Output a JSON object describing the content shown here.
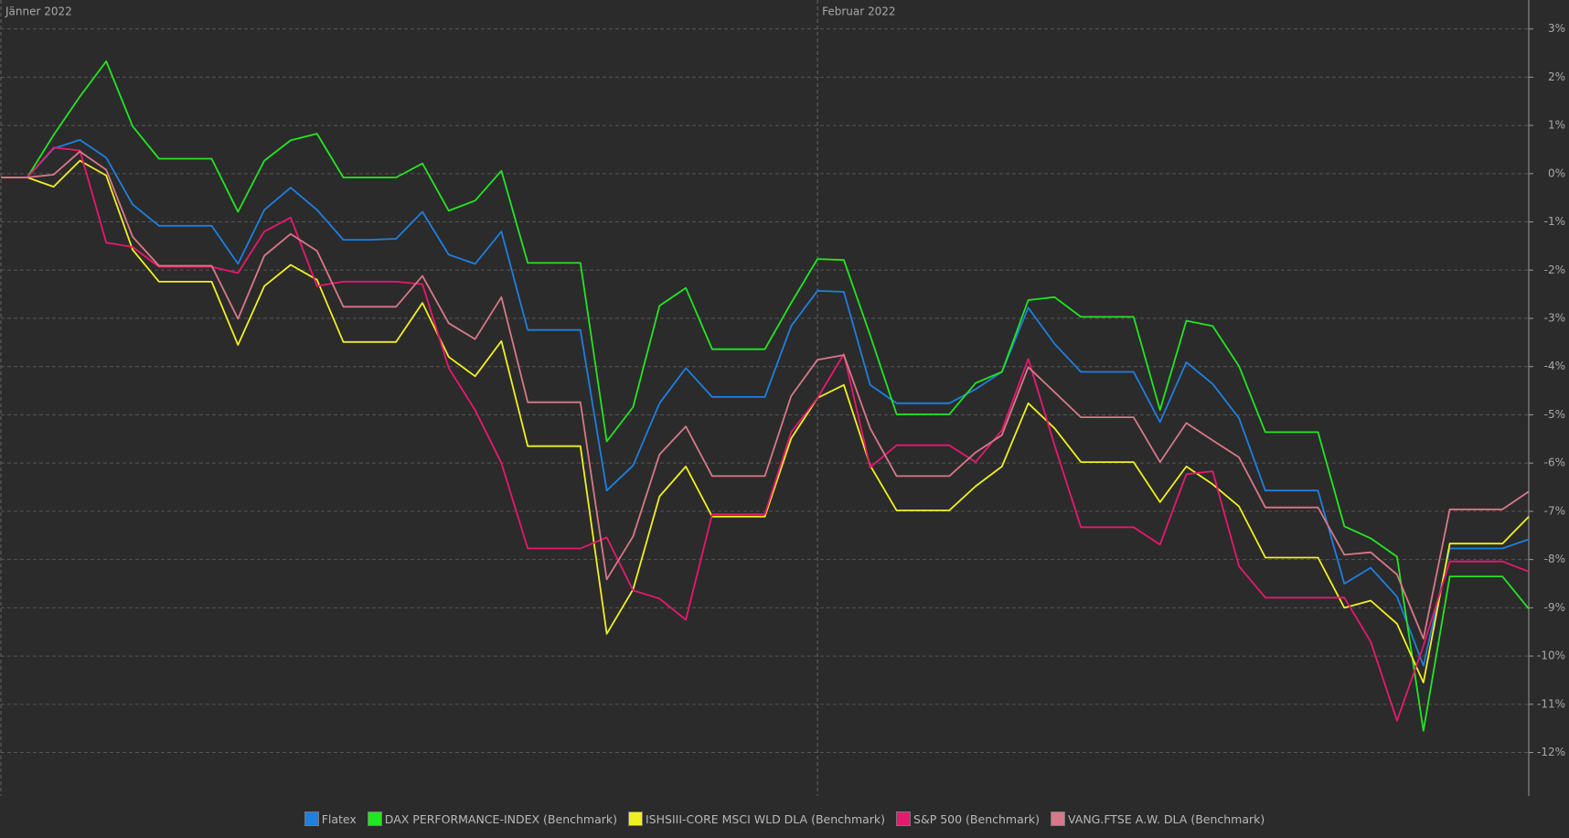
{
  "chart_data": {
    "type": "line",
    "categories": [
      "Jänner 2022",
      null,
      null,
      null,
      null,
      null,
      null,
      null,
      null,
      null,
      null,
      null,
      null,
      null,
      null,
      null,
      null,
      null,
      null,
      null,
      null,
      null,
      null,
      null,
      null,
      null,
      null,
      null,
      null,
      null,
      null,
      "Februar 2022",
      null,
      null,
      null,
      null,
      null,
      null,
      null,
      null,
      null,
      null,
      null,
      null,
      null,
      null,
      null,
      null,
      null,
      null,
      null,
      null,
      null,
      null,
      null,
      null,
      null,
      null,
      null
    ],
    "series": [
      {
        "name": "Flatex",
        "color": "#1e7fe0",
        "values": [
          -0.08,
          -0.08,
          0.52,
          0.7,
          0.33,
          -0.64,
          -1.08,
          -1.08,
          -1.08,
          -1.87,
          -0.75,
          -0.29,
          -0.75,
          -1.37,
          -1.37,
          -1.35,
          -0.79,
          -1.68,
          -1.87,
          -1.2,
          -3.24,
          -3.24,
          -3.24,
          -6.57,
          -6.05,
          -4.76,
          -4.03,
          -4.63,
          -4.63,
          -4.63,
          -3.16,
          -2.43,
          -2.45,
          -4.38,
          -4.76,
          -4.76,
          -4.76,
          -4.47,
          -4.11,
          -2.78,
          -3.53,
          -4.11,
          -4.11,
          -4.11,
          -5.15,
          -3.91,
          -4.36,
          -5.07,
          -6.57,
          -6.57,
          -6.57,
          -8.5,
          -8.17,
          -8.77,
          -10.2,
          -7.77,
          -7.77,
          -7.77,
          -7.58
        ]
      },
      {
        "name": "DAX PERFORMANCE-INDEX (Benchmark)",
        "color": "#22e622",
        "values": [
          -0.08,
          -0.08,
          0.8,
          1.6,
          2.33,
          0.98,
          0.31,
          0.31,
          0.31,
          -0.79,
          0.27,
          0.69,
          0.83,
          -0.08,
          -0.08,
          -0.08,
          0.21,
          -0.77,
          -0.56,
          0.06,
          -1.85,
          -1.85,
          -1.85,
          -5.55,
          -4.84,
          -2.74,
          -2.37,
          -3.64,
          -3.64,
          -3.64,
          -2.68,
          -1.77,
          -1.79,
          -3.35,
          -4.99,
          -4.99,
          -4.99,
          -4.34,
          -4.11,
          -2.62,
          -2.56,
          -2.97,
          -2.97,
          -2.97,
          -4.9,
          -3.05,
          -3.16,
          -3.99,
          -5.36,
          -5.36,
          -5.36,
          -7.31,
          -7.56,
          -7.94,
          -11.55,
          -8.35,
          -8.35,
          -8.35,
          -9.02
        ]
      },
      {
        "name": "ISHSIII-CORE MSCI WLD DLA (Benchmark)",
        "color": "#f0f020",
        "values": [
          -0.08,
          -0.08,
          -0.27,
          0.27,
          -0.04,
          -1.58,
          -2.24,
          -2.24,
          -2.24,
          -3.55,
          -2.33,
          -1.89,
          -2.2,
          -3.49,
          -3.49,
          -3.49,
          -2.68,
          -3.8,
          -4.2,
          -3.47,
          -5.65,
          -5.65,
          -5.65,
          -9.54,
          -8.62,
          -6.69,
          -6.07,
          -7.11,
          -7.11,
          -7.11,
          -5.49,
          -4.65,
          -4.38,
          -6.05,
          -6.98,
          -6.98,
          -6.98,
          -6.48,
          -6.07,
          -4.76,
          -5.28,
          -5.98,
          -5.98,
          -5.98,
          -6.81,
          -6.07,
          -6.44,
          -6.9,
          -7.96,
          -7.96,
          -7.96,
          -9.0,
          -8.85,
          -9.33,
          -10.55,
          -7.67,
          -7.67,
          -7.67,
          -7.11
        ]
      },
      {
        "name": "S&P 500 (Benchmark)",
        "color": "#e8186e",
        "values": [
          -0.08,
          -0.08,
          0.54,
          0.48,
          -1.43,
          -1.52,
          -1.93,
          -1.93,
          -1.93,
          -2.06,
          -1.2,
          -0.91,
          -2.33,
          -2.24,
          -2.24,
          -2.24,
          -2.29,
          -4.03,
          -4.9,
          -6.0,
          -7.77,
          -7.77,
          -7.77,
          -7.54,
          -8.64,
          -8.81,
          -9.25,
          -7.06,
          -7.06,
          -7.06,
          -5.36,
          -4.65,
          -3.74,
          -6.09,
          -5.63,
          -5.63,
          -5.63,
          -5.98,
          -5.32,
          -3.84,
          -5.63,
          -7.33,
          -7.33,
          -7.33,
          -7.69,
          -6.23,
          -6.17,
          -8.14,
          -8.79,
          -8.79,
          -8.79,
          -8.79,
          -9.7,
          -11.34,
          -9.79,
          -8.04,
          -8.04,
          -8.04,
          -8.25
        ]
      },
      {
        "name": "VANG.FTSE A.W. DLA (Benchmark)",
        "color": "#d8788a",
        "values": [
          -0.08,
          -0.08,
          -0.02,
          0.46,
          0.08,
          -1.31,
          -1.91,
          -1.91,
          -1.91,
          -3.01,
          -1.7,
          -1.25,
          -1.6,
          -2.76,
          -2.76,
          -2.76,
          -2.12,
          -3.1,
          -3.43,
          -2.56,
          -4.74,
          -4.74,
          -4.74,
          -8.41,
          -7.52,
          -5.82,
          -5.24,
          -6.27,
          -6.27,
          -6.27,
          -4.61,
          -3.86,
          -3.76,
          -5.28,
          -6.27,
          -6.27,
          -6.27,
          -5.78,
          -5.42,
          -4.01,
          -4.53,
          -5.05,
          -5.05,
          -5.05,
          -5.98,
          -5.17,
          -5.53,
          -5.88,
          -6.92,
          -6.92,
          -6.92,
          -7.9,
          -7.85,
          -8.31,
          -9.64,
          -6.96,
          -6.96,
          -6.96,
          -6.59
        ]
      }
    ],
    "ylim": [
      -12.9,
      3.6
    ],
    "yticks": [
      {
        "value": 3,
        "label": "3%"
      },
      {
        "value": 2,
        "label": "2%"
      },
      {
        "value": 1,
        "label": "1%"
      },
      {
        "value": 0,
        "label": "0%"
      },
      {
        "value": -1,
        "label": "-1%"
      },
      {
        "value": -2,
        "label": "-2%"
      },
      {
        "value": -3,
        "label": "-3%"
      },
      {
        "value": -4,
        "label": "-4%"
      },
      {
        "value": -5,
        "label": "-5%"
      },
      {
        "value": -6,
        "label": "-6%"
      },
      {
        "value": -7,
        "label": "-7%"
      },
      {
        "value": -8,
        "label": "-8%"
      },
      {
        "value": -9,
        "label": "-9%"
      },
      {
        "value": -10,
        "label": "-10%"
      },
      {
        "value": -11,
        "label": "-11%"
      },
      {
        "value": -12,
        "label": "-12%"
      }
    ],
    "grid": true,
    "legend": "bottom"
  }
}
